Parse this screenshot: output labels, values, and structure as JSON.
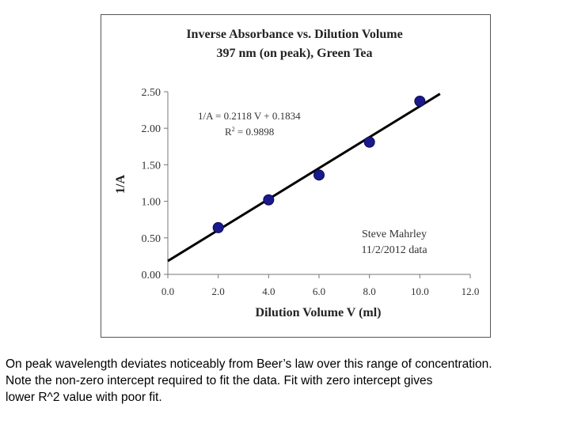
{
  "chart_data": {
    "type": "scatter",
    "title": "Inverse Absorbance vs. Dilution Volume",
    "subtitle": "397 nm (on peak), Green Tea",
    "xlabel": "Dilution Volume V (ml)",
    "ylabel": "1/A",
    "xlim": [
      0,
      12
    ],
    "ylim": [
      0,
      2.5
    ],
    "x_ticks": [
      "0.0",
      "2.0",
      "4.0",
      "6.0",
      "8.0",
      "10.0",
      "12.0"
    ],
    "y_ticks": [
      "0.00",
      "0.50",
      "1.00",
      "1.50",
      "2.00",
      "2.50"
    ],
    "grid": false,
    "series": [
      {
        "x": [
          2,
          4,
          6,
          8,
          10
        ],
        "y": [
          0.64,
          1.02,
          1.36,
          1.81,
          2.37
        ],
        "color": "#1a1a8c"
      }
    ],
    "trendline": {
      "slope": 0.2118,
      "intercept": 0.1834,
      "equation": "1/A = 0.2118 V + 0.1834",
      "r2_label": "R",
      "r2_sup": "2",
      "r2_value": " = 0.9898",
      "color": "#000000"
    },
    "annotation": {
      "line1": "Steve Mahrley",
      "line2": "11/2/2012 data"
    }
  },
  "caption": {
    "line1": "On peak wavelength deviates noticeably from Beer’s law over this range of concentration.",
    "line2": "Note the non-zero intercept required to fit the data.  Fit with zero intercept gives",
    "line3": "lower R^2 value with poor fit."
  }
}
